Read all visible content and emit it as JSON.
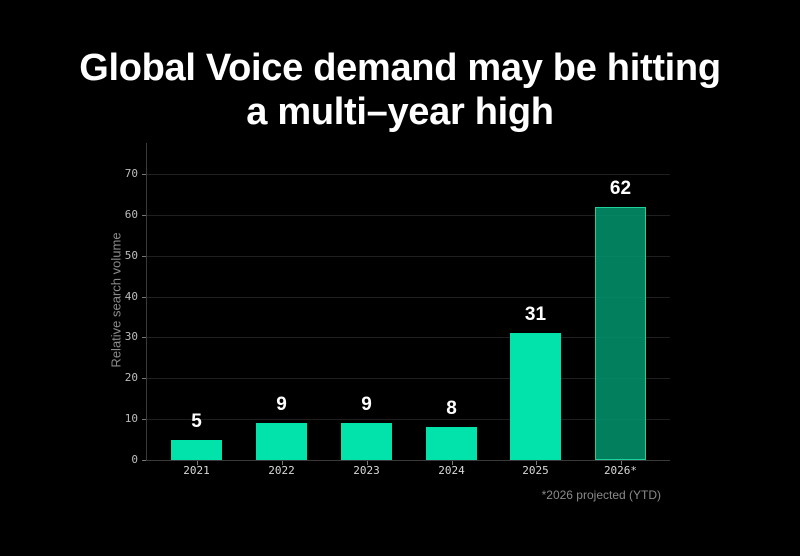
{
  "title": {
    "line1": "Global Voice demand may be hitting",
    "line2": "a multi–year high"
  },
  "colors": {
    "background": "#000000",
    "bar_actual": "#02e2ab",
    "bar_projected": "#02966e",
    "bar_projected_border": "#1fd29d",
    "text": "#ffffff",
    "muted_text": "#8a8a8a"
  },
  "footnote": "*2026 projected (YTD)",
  "chart_data": {
    "type": "bar",
    "title": "Global Voice demand may be hitting a multi–year high",
    "xlabel": "",
    "ylabel": "Relative search volume",
    "categories": [
      "2021",
      "2022",
      "2023",
      "2024",
      "2025",
      "2026*"
    ],
    "values": [
      5,
      9,
      9,
      8,
      31,
      62
    ],
    "data_labels": [
      "5",
      "9",
      "9",
      "8",
      "31",
      "62"
    ],
    "projected": [
      false,
      false,
      false,
      false,
      false,
      true
    ],
    "ylim": [
      0,
      70
    ],
    "yticks": [
      "0",
      "10",
      "20",
      "30",
      "40",
      "50",
      "60",
      "70"
    ],
    "grid": true,
    "legend": null,
    "annotations": [
      "*2026 projected (YTD)"
    ]
  }
}
